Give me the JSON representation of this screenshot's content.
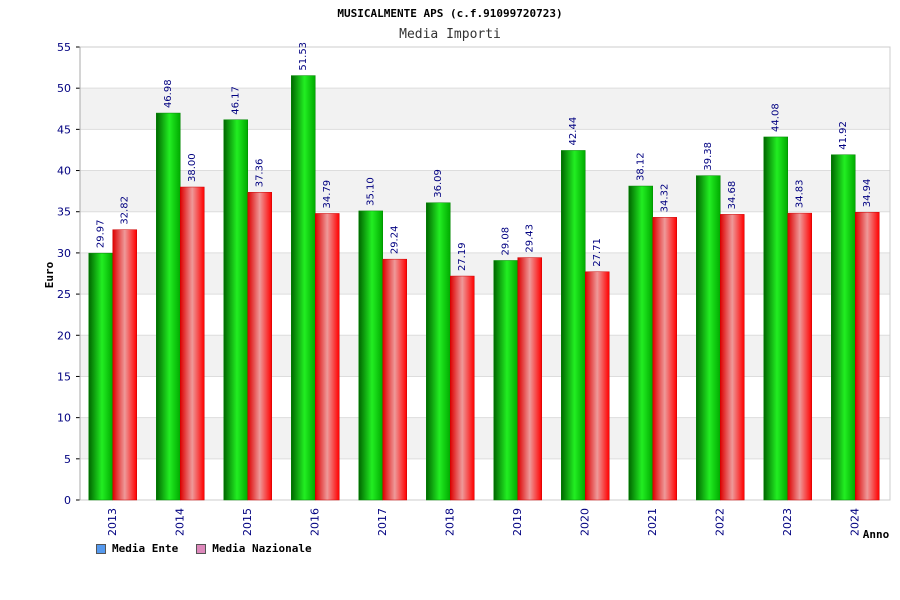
{
  "chart_data": {
    "type": "bar",
    "title": "MUSICALMENTE APS (c.f.91099720723)",
    "subtitle": "Media Importi",
    "xlabel": "Anno",
    "ylabel": "Euro",
    "ylim": [
      0,
      55
    ],
    "yticks": [
      0,
      5,
      10,
      15,
      20,
      25,
      30,
      35,
      40,
      45,
      50,
      55
    ],
    "grid": true,
    "legend_placement": "bottom-left",
    "categories": [
      "2013",
      "2014",
      "2015",
      "2016",
      "2017",
      "2018",
      "2019",
      "2020",
      "2021",
      "2022",
      "2023",
      "2024"
    ],
    "series": [
      {
        "name": "Media Ente",
        "color": "#00c000",
        "legend_color": "#5599ee",
        "values": [
          29.97,
          46.98,
          46.17,
          51.53,
          35.1,
          36.09,
          29.08,
          42.44,
          38.12,
          39.38,
          44.08,
          41.92
        ],
        "labels": [
          "29.97",
          "46.98",
          "46.17",
          "51.53",
          "35.10",
          "36.09",
          "29.08",
          "42.44",
          "38.12",
          "39.38",
          "44.08",
          "41.92"
        ]
      },
      {
        "name": "Media Nazionale",
        "color": "#ee0000",
        "legend_color": "#dd88bb",
        "values": [
          32.82,
          38.0,
          37.36,
          34.79,
          29.24,
          27.19,
          29.43,
          27.71,
          34.32,
          34.68,
          34.83,
          34.94
        ],
        "labels": [
          "32.82",
          "38.00",
          "37.36",
          "34.79",
          "29.24",
          "27.19",
          "29.43",
          "27.71",
          "34.32",
          "34.68",
          "34.83",
          "34.94"
        ]
      }
    ]
  }
}
